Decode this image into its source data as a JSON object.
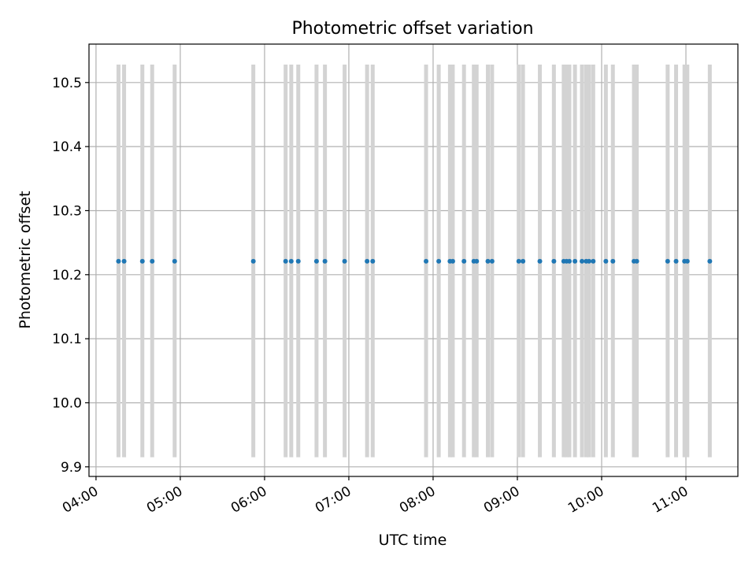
{
  "chart_data": {
    "type": "scatter",
    "title": "Photometric offset variation",
    "xlabel": "UTC time",
    "ylabel": "Photometric offset",
    "x_is_time": true,
    "xlim": [
      "03:55",
      "11:37"
    ],
    "ylim": [
      9.885,
      10.56
    ],
    "xticks": [
      "04:00",
      "05:00",
      "06:00",
      "07:00",
      "08:00",
      "09:00",
      "10:00",
      "11:00"
    ],
    "yticks": [
      "9.9",
      "10.0",
      "10.1",
      "10.2",
      "10.3",
      "10.4",
      "10.5"
    ],
    "grid": true,
    "legend": "none",
    "colors": {
      "points": "#1f77b4",
      "errorbars": "#d3d3d3",
      "grid": "#b0b0b0"
    },
    "errorbar_low": 9.915,
    "errorbar_high": 10.528,
    "points": [
      {
        "x": "04:16",
        "y": 10.221
      },
      {
        "x": "04:20",
        "y": 10.221
      },
      {
        "x": "04:33",
        "y": 10.221
      },
      {
        "x": "04:40",
        "y": 10.221
      },
      {
        "x": "04:56",
        "y": 10.221
      },
      {
        "x": "05:52",
        "y": 10.221
      },
      {
        "x": "06:15",
        "y": 10.221
      },
      {
        "x": "06:19",
        "y": 10.221
      },
      {
        "x": "06:24",
        "y": 10.221
      },
      {
        "x": "06:37",
        "y": 10.221
      },
      {
        "x": "06:43",
        "y": 10.221
      },
      {
        "x": "06:57",
        "y": 10.221
      },
      {
        "x": "07:13",
        "y": 10.221
      },
      {
        "x": "07:17",
        "y": 10.221
      },
      {
        "x": "07:55",
        "y": 10.221
      },
      {
        "x": "08:04",
        "y": 10.221
      },
      {
        "x": "08:12",
        "y": 10.221
      },
      {
        "x": "08:14",
        "y": 10.221
      },
      {
        "x": "08:22",
        "y": 10.221
      },
      {
        "x": "08:29",
        "y": 10.221
      },
      {
        "x": "08:31",
        "y": 10.221
      },
      {
        "x": "08:39",
        "y": 10.221
      },
      {
        "x": "08:42",
        "y": 10.221
      },
      {
        "x": "09:01",
        "y": 10.221
      },
      {
        "x": "09:04",
        "y": 10.221
      },
      {
        "x": "09:16",
        "y": 10.221
      },
      {
        "x": "09:26",
        "y": 10.221
      },
      {
        "x": "09:33",
        "y": 10.221
      },
      {
        "x": "09:35",
        "y": 10.221
      },
      {
        "x": "09:37",
        "y": 10.221
      },
      {
        "x": "09:41",
        "y": 10.221
      },
      {
        "x": "09:46",
        "y": 10.221
      },
      {
        "x": "09:49",
        "y": 10.221
      },
      {
        "x": "09:51",
        "y": 10.221
      },
      {
        "x": "09:54",
        "y": 10.221
      },
      {
        "x": "10:03",
        "y": 10.221
      },
      {
        "x": "10:08",
        "y": 10.221
      },
      {
        "x": "10:23",
        "y": 10.221
      },
      {
        "x": "10:25",
        "y": 10.221
      },
      {
        "x": "10:47",
        "y": 10.221
      },
      {
        "x": "10:53",
        "y": 10.221
      },
      {
        "x": "10:59",
        "y": 10.221
      },
      {
        "x": "11:01",
        "y": 10.221
      },
      {
        "x": "11:17",
        "y": 10.221
      }
    ]
  }
}
